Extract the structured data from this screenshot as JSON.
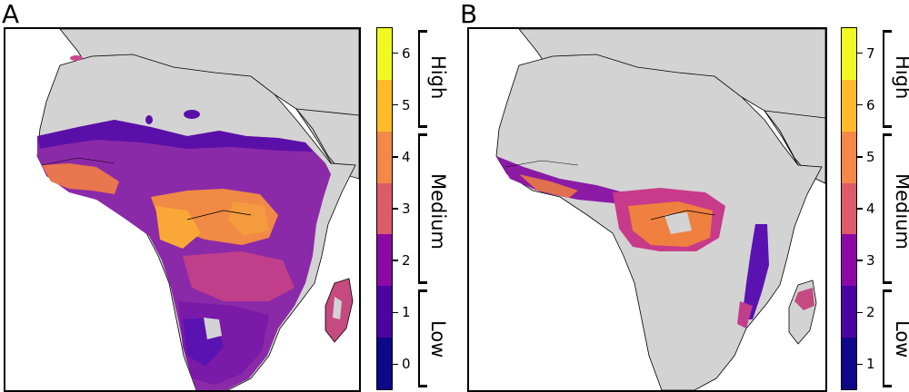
{
  "panels": [
    {
      "letter": "A",
      "colorbar": {
        "ticks": [
          "0",
          "1",
          "2",
          "3",
          "4",
          "5",
          "6"
        ],
        "range": [
          -0.5,
          6.5
        ],
        "levels": [
          "Low",
          "Medium",
          "High"
        ]
      }
    },
    {
      "letter": "B",
      "colorbar": {
        "ticks": [
          "1",
          "2",
          "3",
          "4",
          "5",
          "6",
          "7"
        ],
        "range": [
          0.5,
          7.5
        ],
        "levels": [
          "Low",
          "Medium",
          "High"
        ]
      }
    }
  ],
  "colors": {
    "land": "#d3d3d3",
    "coast": "#000000",
    "scale": [
      "#0d0887",
      "#4b03a1",
      "#8b0aa5",
      "#b83289",
      "#db5c68",
      "#f48849",
      "#febc2a",
      "#f0f921"
    ]
  }
}
